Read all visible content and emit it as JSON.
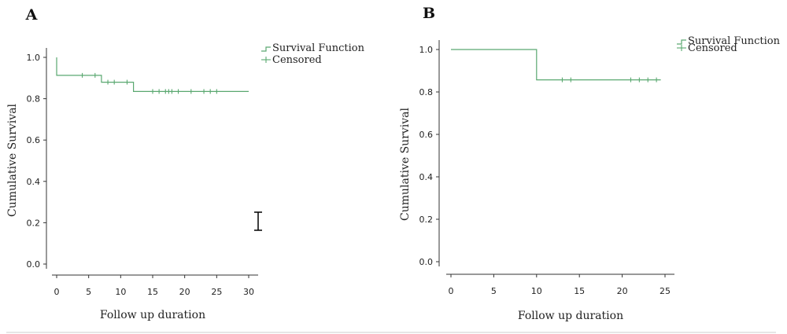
{
  "figure": {
    "accent_color": "#5aa870"
  },
  "chart_data": [
    {
      "type": "line",
      "panel_label": "A",
      "xlabel": "Follow up duration",
      "ylabel": "Cumulative Survival",
      "xlim": [
        0,
        30
      ],
      "ylim": [
        0.0,
        1.0
      ],
      "x_ticks": [
        0,
        5,
        10,
        15,
        20,
        25,
        30
      ],
      "y_ticks": [
        0.0,
        0.2,
        0.4,
        0.6,
        0.8,
        1.0
      ],
      "grid": false,
      "legend_placement": "top-right",
      "legend": [
        "Survival Function",
        "Censored"
      ],
      "series": [
        {
          "name": "Survival Function",
          "color": "#5aa870",
          "steps": [
            {
              "x": 0,
              "y": 1.0
            },
            {
              "x": 0,
              "y": 0.913
            },
            {
              "x": 7,
              "y": 0.913
            },
            {
              "x": 7,
              "y": 0.88
            },
            {
              "x": 12,
              "y": 0.88
            },
            {
              "x": 12,
              "y": 0.835
            },
            {
              "x": 30,
              "y": 0.835
            }
          ]
        },
        {
          "name": "Censored",
          "color": "#5aa870",
          "points": [
            {
              "x": 4,
              "y": 0.913
            },
            {
              "x": 6,
              "y": 0.913
            },
            {
              "x": 8,
              "y": 0.88
            },
            {
              "x": 9,
              "y": 0.88
            },
            {
              "x": 11,
              "y": 0.88
            },
            {
              "x": 15,
              "y": 0.835
            },
            {
              "x": 16,
              "y": 0.835
            },
            {
              "x": 17,
              "y": 0.835
            },
            {
              "x": 17.5,
              "y": 0.835
            },
            {
              "x": 18,
              "y": 0.835
            },
            {
              "x": 19,
              "y": 0.835
            },
            {
              "x": 21,
              "y": 0.835
            },
            {
              "x": 23,
              "y": 0.835
            },
            {
              "x": 24,
              "y": 0.835
            },
            {
              "x": 25,
              "y": 0.835
            }
          ]
        }
      ]
    },
    {
      "type": "line",
      "panel_label": "B",
      "xlabel": "Follow up duration",
      "ylabel": "Cumulative Survival",
      "xlim": [
        0,
        25
      ],
      "ylim": [
        0.0,
        1.0
      ],
      "x_ticks": [
        0,
        5,
        10,
        15,
        20,
        25
      ],
      "y_ticks": [
        0.0,
        0.2,
        0.4,
        0.6,
        0.8,
        1.0
      ],
      "grid": false,
      "legend_placement": "top-right",
      "legend": [
        "Survival Function",
        "Censored"
      ],
      "series": [
        {
          "name": "Survival Function",
          "color": "#5aa870",
          "steps": [
            {
              "x": 0,
              "y": 1.0
            },
            {
              "x": 10,
              "y": 1.0
            },
            {
              "x": 10,
              "y": 0.857
            },
            {
              "x": 24.5,
              "y": 0.857
            }
          ]
        },
        {
          "name": "Censored",
          "color": "#5aa870",
          "points": [
            {
              "x": 13,
              "y": 0.857
            },
            {
              "x": 14,
              "y": 0.857
            },
            {
              "x": 21,
              "y": 0.857
            },
            {
              "x": 22,
              "y": 0.857
            },
            {
              "x": 23,
              "y": 0.857
            },
            {
              "x": 24,
              "y": 0.857
            }
          ]
        }
      ]
    }
  ]
}
